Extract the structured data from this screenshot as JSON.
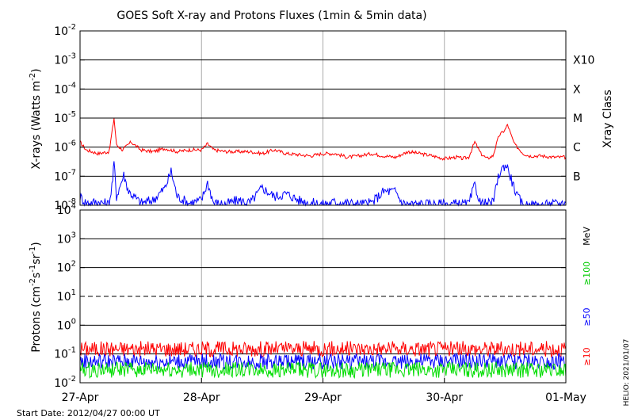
{
  "chart_data": [
    {
      "type": "line",
      "title": "GOES Soft X-ray and Protons Fluxes   (1min & 5min data)",
      "ylabel_base": "X-rays (Watts m",
      "ylabel_exp": "-2",
      "ylabel_end": ")",
      "yscale": "log",
      "ylim": [
        1e-08,
        0.01
      ],
      "y_ticks": [
        {
          "base": "10",
          "exp": "-2"
        },
        {
          "base": "10",
          "exp": "-3"
        },
        {
          "base": "10",
          "exp": "-4"
        },
        {
          "base": "10",
          "exp": "-5"
        },
        {
          "base": "10",
          "exp": "-6"
        },
        {
          "base": "10",
          "exp": "-7"
        },
        {
          "base": "10",
          "exp": "-8"
        }
      ],
      "right_axis_label": "Xray Class",
      "classes": [
        {
          "label": "X10",
          "value": 0.001
        },
        {
          "label": "X",
          "value": 0.0001
        },
        {
          "label": "M",
          "value": 1e-05
        },
        {
          "label": "C",
          "value": 1e-06
        },
        {
          "label": "B",
          "value": 1e-07
        }
      ],
      "series": [
        {
          "color": "#ff0000",
          "points": [
            [
              0,
              1.5e-06
            ],
            [
              0.05,
              8e-07
            ],
            [
              0.15,
              6e-07
            ],
            [
              0.24,
              7e-07
            ],
            [
              0.28,
              1e-05
            ],
            [
              0.3,
              1.2e-06
            ],
            [
              0.35,
              8e-07
            ],
            [
              0.42,
              1.5e-06
            ],
            [
              0.5,
              8e-07
            ],
            [
              0.6,
              7e-07
            ],
            [
              0.7,
              9e-07
            ],
            [
              0.8,
              7e-07
            ],
            [
              0.9,
              8e-07
            ],
            [
              1.0,
              8e-07
            ],
            [
              1.05,
              1.3e-06
            ],
            [
              1.1,
              8e-07
            ],
            [
              1.2,
              7e-07
            ],
            [
              1.3,
              7e-07
            ],
            [
              1.4,
              7e-07
            ],
            [
              1.5,
              6e-07
            ],
            [
              1.6,
              8e-07
            ],
            [
              1.7,
              6e-07
            ],
            [
              1.8,
              5.5e-07
            ],
            [
              1.9,
              5e-07
            ],
            [
              2.0,
              6e-07
            ],
            [
              2.1,
              6e-07
            ],
            [
              2.2,
              4.5e-07
            ],
            [
              2.3,
              5e-07
            ],
            [
              2.4,
              6e-07
            ],
            [
              2.5,
              5e-07
            ],
            [
              2.6,
              4.5e-07
            ],
            [
              2.7,
              7e-07
            ],
            [
              2.8,
              6e-07
            ],
            [
              2.9,
              5e-07
            ],
            [
              3.0,
              4e-07
            ],
            [
              3.1,
              4.5e-07
            ],
            [
              3.15,
              4e-07
            ],
            [
              3.2,
              4.5e-07
            ],
            [
              3.25,
              1.5e-06
            ],
            [
              3.3,
              6e-07
            ],
            [
              3.35,
              4e-07
            ],
            [
              3.4,
              5e-07
            ],
            [
              3.45,
              2.5e-06
            ],
            [
              3.5,
              4e-06
            ],
            [
              3.52,
              6e-06
            ],
            [
              3.55,
              2.5e-06
            ],
            [
              3.58,
              1.2e-06
            ],
            [
              3.6,
              1e-06
            ],
            [
              3.65,
              6e-07
            ],
            [
              3.7,
              5e-07
            ],
            [
              3.8,
              5e-07
            ],
            [
              3.9,
              4.5e-07
            ],
            [
              4.0,
              4.5e-07
            ]
          ]
        },
        {
          "color": "#0000ff",
          "points": [
            [
              0,
              2e-08
            ],
            [
              0.05,
              1.2e-08
            ],
            [
              0.15,
              1.3e-08
            ],
            [
              0.24,
              1.1e-08
            ],
            [
              0.27,
              8e-08
            ],
            [
              0.28,
              3e-07
            ],
            [
              0.3,
              2e-08
            ],
            [
              0.36,
              1.1e-07
            ],
            [
              0.4,
              3e-08
            ],
            [
              0.5,
              1.2e-08
            ],
            [
              0.6,
              1.5e-08
            ],
            [
              0.7,
              4e-08
            ],
            [
              0.75,
              1.5e-07
            ],
            [
              0.8,
              2e-08
            ],
            [
              0.9,
              1.2e-08
            ],
            [
              1.0,
              1.5e-08
            ],
            [
              1.05,
              6e-08
            ],
            [
              1.1,
              1.2e-08
            ],
            [
              1.2,
              1.1e-08
            ],
            [
              1.3,
              1.5e-08
            ],
            [
              1.4,
              1.2e-08
            ],
            [
              1.5,
              4e-08
            ],
            [
              1.6,
              2e-08
            ],
            [
              1.7,
              2.5e-08
            ],
            [
              1.8,
              1.5e-08
            ],
            [
              1.9,
              1.2e-08
            ],
            [
              2.0,
              1.1e-08
            ],
            [
              2.1,
              1.3e-08
            ],
            [
              2.2,
              1.2e-08
            ],
            [
              2.3,
              1.1e-08
            ],
            [
              2.4,
              1.2e-08
            ],
            [
              2.5,
              3e-08
            ],
            [
              2.6,
              3e-08
            ],
            [
              2.65,
              1.2e-08
            ],
            [
              2.7,
              1.1e-08
            ],
            [
              2.8,
              1.1e-08
            ],
            [
              2.9,
              1.1e-08
            ],
            [
              3.0,
              1.1e-08
            ],
            [
              3.1,
              1.1e-08
            ],
            [
              3.2,
              1.1e-08
            ],
            [
              3.25,
              5e-08
            ],
            [
              3.3,
              1.1e-08
            ],
            [
              3.4,
              1.2e-08
            ],
            [
              3.45,
              1.2e-07
            ],
            [
              3.5,
              2.5e-07
            ],
            [
              3.52,
              2e-07
            ],
            [
              3.55,
              8e-08
            ],
            [
              3.6,
              2e-08
            ],
            [
              3.65,
              1e-08
            ],
            [
              3.8,
              1e-08
            ],
            [
              3.9,
              1.1e-08
            ],
            [
              4.0,
              1.2e-08
            ]
          ]
        }
      ]
    },
    {
      "type": "line",
      "ylabel_base": "Protons (cm",
      "ylabel_exp1": "-2",
      "ylabel_mid1": "s",
      "ylabel_exp2": "-1",
      "ylabel_mid2": "sr",
      "ylabel_exp3": "-1",
      "ylabel_end": ")",
      "yscale": "log",
      "ylim": [
        0.01,
        10000
      ],
      "y_ticks": [
        {
          "base": "10",
          "exp": "4"
        },
        {
          "base": "10",
          "exp": "3"
        },
        {
          "base": "10",
          "exp": "2"
        },
        {
          "base": "10",
          "exp": "1"
        },
        {
          "base": "10",
          "exp": "0"
        },
        {
          "base": "10",
          "exp": "-1"
        },
        {
          "base": "10",
          "exp": "-2"
        }
      ],
      "threshold": 10,
      "right_labels": [
        {
          "label": "MeV",
          "color": "#000000"
        },
        {
          "label": "≥100",
          "color": "#00cc00"
        },
        {
          "label": "≥50",
          "color": "#0000ff"
        },
        {
          "label": "≥10",
          "color": "#ff0000"
        }
      ],
      "series": [
        {
          "color": "#ff0000",
          "level": 0.15
        },
        {
          "color": "#0000ff",
          "level": 0.055
        },
        {
          "color": "#00dd00",
          "level": 0.028
        }
      ]
    }
  ],
  "x_axis": {
    "range": [
      0,
      4
    ],
    "tick_labels": [
      "27-Apr",
      "28-Apr",
      "29-Apr",
      "30-Apr",
      "01-May"
    ]
  },
  "footer": {
    "start_date": "Start Date: 2012/04/27 00:00 UT",
    "credit": "HELIO: 2021/01/07"
  }
}
